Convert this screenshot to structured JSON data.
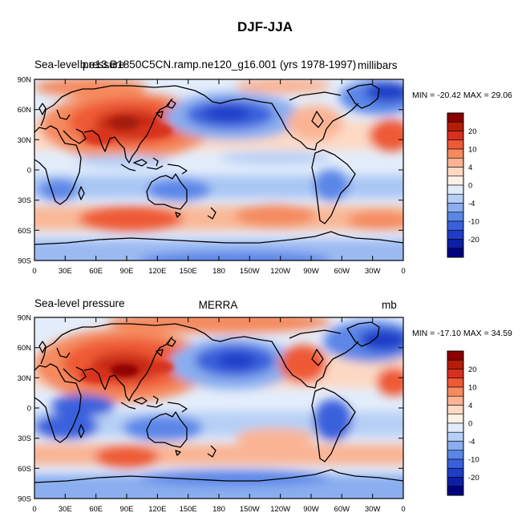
{
  "title": "DJF-JJA",
  "panels": [
    {
      "left_title": "Sea-level pressure",
      "center_title": "b.e13.B1850C5CN.ramp.ne120_g16.001 (yrs 1978-1997)",
      "right_title": "millibars",
      "stats": "MIN = -20.42 MAX =  29.06"
    },
    {
      "left_title": "Sea-level pressure",
      "center_title": "MERRA",
      "right_title": "mb",
      "stats": "MIN = -17.10 MAX =  34.59"
    }
  ],
  "map": {
    "lat_ticks": [
      "90N",
      "60N",
      "30N",
      "0",
      "30S",
      "60S",
      "90S"
    ],
    "lon_ticks": [
      "0",
      "30E",
      "60E",
      "90E",
      "120E",
      "150E",
      "180",
      "150W",
      "120W",
      "90W",
      "60W",
      "30W",
      "0"
    ]
  },
  "colorbar": {
    "labels": [
      "20",
      "10",
      "4",
      "0",
      "-4",
      "-10",
      "-20"
    ],
    "colors": [
      "#8b0000",
      "#b51c0a",
      "#d7301f",
      "#ee5a36",
      "#f58a5e",
      "#fab494",
      "#fdd9c4",
      "#fdf1e6",
      "#e1ecfb",
      "#b6cff6",
      "#8aaeef",
      "#5b86e8",
      "#3a60dc",
      "#1f3dc7",
      "#0b1fa3",
      "#000080"
    ]
  }
}
